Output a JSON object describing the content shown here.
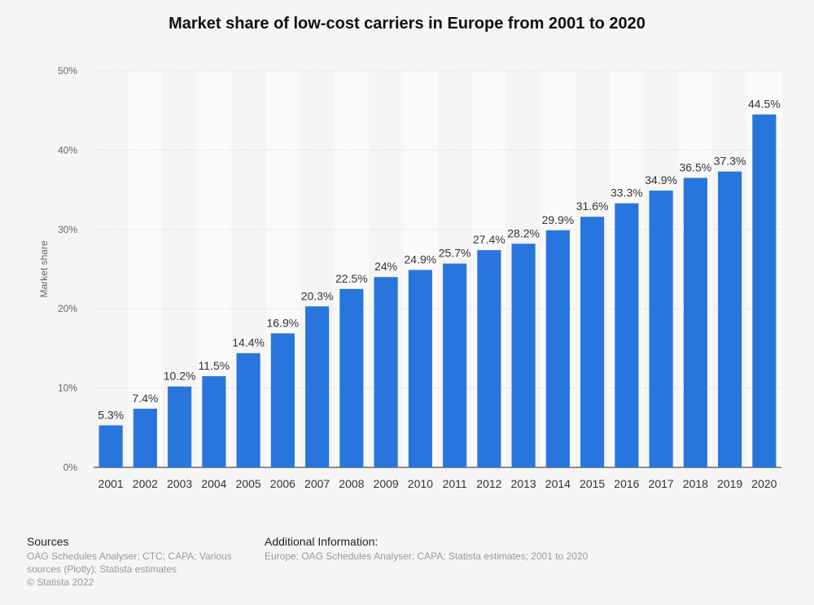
{
  "chart_data": {
    "type": "bar",
    "title": "Market share of low-cost carriers in Europe from 2001 to 2020",
    "ylabel": "Market share",
    "xlabel": "",
    "categories": [
      "2001",
      "2002",
      "2003",
      "2004",
      "2005",
      "2006",
      "2007",
      "2008",
      "2009",
      "2010",
      "2011",
      "2012",
      "2013",
      "2014",
      "2015",
      "2016",
      "2017",
      "2018",
      "2019",
      "2020"
    ],
    "values": [
      5.3,
      7.4,
      10.2,
      11.5,
      14.4,
      16.9,
      20.3,
      22.5,
      24,
      24.9,
      25.7,
      27.4,
      28.2,
      29.9,
      31.6,
      33.3,
      34.9,
      36.5,
      37.3,
      44.5
    ],
    "value_labels": [
      "5.3%",
      "7.4%",
      "10.2%",
      "11.5%",
      "14.4%",
      "16.9%",
      "20.3%",
      "22.5%",
      "24%",
      "24.9%",
      "25.7%",
      "27.4%",
      "28.2%",
      "29.9%",
      "31.6%",
      "33.3%",
      "34.9%",
      "36.5%",
      "37.3%",
      "44.5%"
    ],
    "ylim": [
      0,
      50
    ],
    "yticks": [
      0,
      10,
      20,
      30,
      40,
      50
    ],
    "ytick_labels": [
      "0%",
      "10%",
      "20%",
      "30%",
      "40%",
      "50%"
    ],
    "grid": true,
    "legend": "none",
    "bar_color": "#2876dd"
  },
  "footer": {
    "sources_title": "Sources",
    "sources_text": "OAG Schedules Analyser; CTC; CAPA; Various sources (Plotly); Statista estimates",
    "copyright": "© Statista 2022",
    "additional_title": "Additional Information:",
    "additional_text": "Europe; OAG Schedules Analyser; CAPA; Statista estimates; 2001 to 2020"
  }
}
